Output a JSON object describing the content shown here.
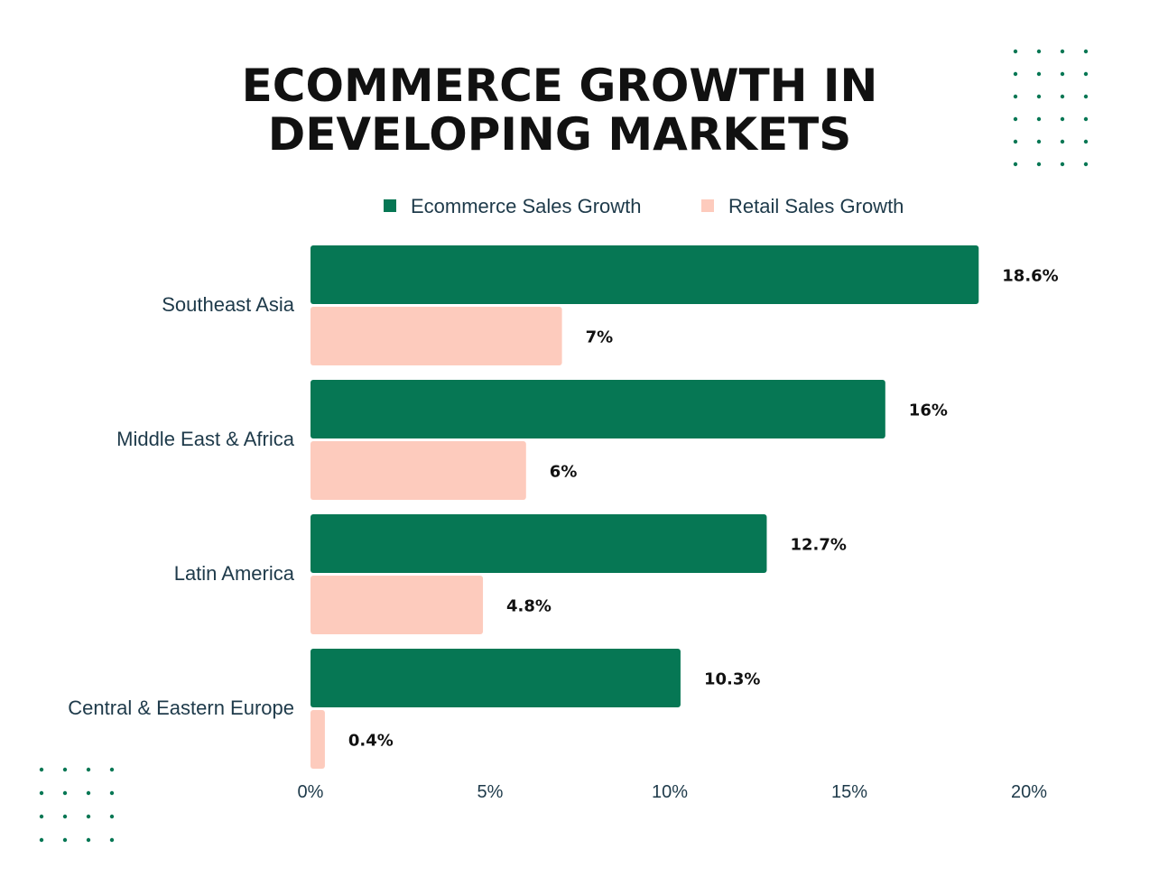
{
  "chart_data": {
    "type": "bar",
    "orientation": "horizontal",
    "title_lines": [
      "ECOMMERCE GROWTH IN",
      "DEVELOPING MARKETS"
    ],
    "categories": [
      "Southeast Asia",
      "Middle East & Africa",
      "Latin America",
      "Central & Eastern Europe"
    ],
    "series": [
      {
        "name": "Ecommerce Sales Growth",
        "color": "#067754",
        "values": [
          18.6,
          16,
          12.7,
          10.3
        ],
        "labels": [
          "18.6%",
          "16%",
          "12.7%",
          "10.3%"
        ]
      },
      {
        "name": "Retail Sales Growth",
        "color": "#fdcbbd",
        "values": [
          7,
          6,
          4.8,
          0.4
        ],
        "labels": [
          "7%",
          "6%",
          "4.8%",
          "0.4%"
        ]
      }
    ],
    "xlim": [
      0,
      20
    ],
    "xticks": [
      0,
      5,
      10,
      15,
      20
    ],
    "xtick_labels": [
      "0%",
      "5%",
      "10%",
      "15%",
      "20%"
    ],
    "legend_position": "top",
    "grid": false
  },
  "decor": {
    "dot_color": "#067754"
  }
}
